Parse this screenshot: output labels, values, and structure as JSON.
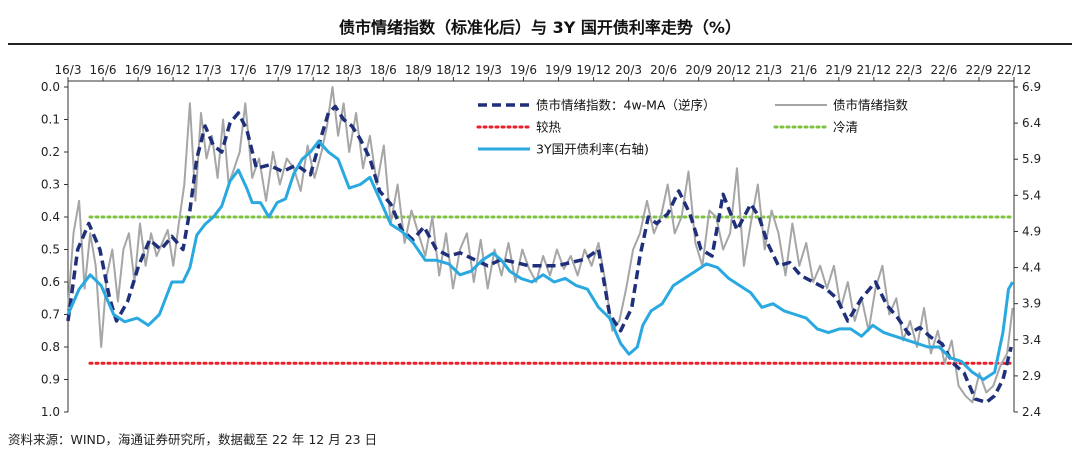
{
  "header": {
    "title": "债市情绪指数（标准化后）与 3Y 国开债利率走势（%）"
  },
  "footer": {
    "source": "资料来源：WIND，海通证券研究所，数据截至 22 年 12 月 23 日"
  },
  "chart_data": {
    "type": "line",
    "title": "债市情绪指数（标准化后）与 3Y 国开债利率走势（%）",
    "x_ticks": [
      "16/3",
      "16/6",
      "16/9",
      "16/12",
      "17/3",
      "17/6",
      "17/9",
      "17/12",
      "18/3",
      "18/6",
      "18/9",
      "18/12",
      "19/3",
      "19/6",
      "19/9",
      "19/12",
      "20/3",
      "20/6",
      "20/9",
      "20/12",
      "21/3",
      "21/6",
      "21/9",
      "21/12",
      "22/3",
      "22/6",
      "22/9",
      "22/12"
    ],
    "x_range": [
      2016.17,
      2023.0
    ],
    "left_axis": {
      "ticks": [
        "0.0",
        "0.1",
        "0.2",
        "0.3",
        "0.4",
        "0.5",
        "0.6",
        "0.7",
        "0.8",
        "0.9",
        "1.0"
      ],
      "range": [
        0.0,
        1.0
      ],
      "inverted": true
    },
    "right_axis": {
      "ticks": [
        "6.9",
        "6.4",
        "5.9",
        "5.4",
        "4.9",
        "4.4",
        "3.9",
        "3.4",
        "2.9",
        "2.4"
      ],
      "range": [
        2.4,
        6.9
      ]
    },
    "legend": [
      {
        "name": "债市情绪指数：4w-MA（逆序）",
        "series": "sentiment_ma"
      },
      {
        "name": "债市情绪指数",
        "series": "sentiment"
      },
      {
        "name": "较热",
        "series": "hot"
      },
      {
        "name": "冷清",
        "series": "cold"
      },
      {
        "name": "3Y国开债利率(右轴)",
        "series": "yield"
      }
    ],
    "series": [
      {
        "id": "sentiment_ma",
        "name": "债市情绪指数：4w-MA（逆序）",
        "axis": "left",
        "color": "#1f2f7a",
        "style": "dash",
        "x": [
          2016.17,
          2016.24,
          2016.32,
          2016.4,
          2016.47,
          2016.52,
          2016.6,
          2016.68,
          2016.76,
          2016.84,
          2016.92,
          2017.0,
          2017.05,
          2017.1,
          2017.16,
          2017.22,
          2017.28,
          2017.34,
          2017.4,
          2017.46,
          2017.53,
          2017.62,
          2017.72,
          2017.82,
          2017.92,
          2018.0,
          2018.05,
          2018.1,
          2018.16,
          2018.22,
          2018.28,
          2018.35,
          2018.42,
          2018.5,
          2018.58,
          2018.66,
          2018.74,
          2018.83,
          2018.92,
          2019.0,
          2019.1,
          2019.2,
          2019.3,
          2019.4,
          2019.5,
          2019.6,
          2019.7,
          2019.8,
          2019.9,
          2020.0,
          2020.08,
          2020.16,
          2020.24,
          2020.3,
          2020.36,
          2020.42,
          2020.5,
          2020.58,
          2020.66,
          2020.74,
          2020.82,
          2020.9,
          2021.0,
          2021.1,
          2021.16,
          2021.22,
          2021.3,
          2021.38,
          2021.46,
          2021.55,
          2021.64,
          2021.72,
          2021.8,
          2021.9,
          2022.0,
          2022.08,
          2022.16,
          2022.24,
          2022.32,
          2022.4,
          2022.48,
          2022.56,
          2022.64,
          2022.72,
          2022.8,
          2022.86,
          2022.92,
          2022.98
        ],
        "y": [
          0.72,
          0.5,
          0.42,
          0.5,
          0.65,
          0.72,
          0.66,
          0.55,
          0.47,
          0.5,
          0.46,
          0.5,
          0.38,
          0.22,
          0.12,
          0.18,
          0.2,
          0.11,
          0.08,
          0.13,
          0.25,
          0.24,
          0.26,
          0.24,
          0.27,
          0.15,
          0.08,
          0.06,
          0.1,
          0.12,
          0.16,
          0.22,
          0.32,
          0.36,
          0.44,
          0.47,
          0.43,
          0.5,
          0.52,
          0.51,
          0.53,
          0.55,
          0.53,
          0.54,
          0.55,
          0.55,
          0.55,
          0.54,
          0.53,
          0.5,
          0.7,
          0.75,
          0.68,
          0.52,
          0.4,
          0.42,
          0.39,
          0.32,
          0.39,
          0.5,
          0.52,
          0.33,
          0.44,
          0.36,
          0.4,
          0.48,
          0.55,
          0.54,
          0.58,
          0.6,
          0.62,
          0.65,
          0.72,
          0.65,
          0.6,
          0.67,
          0.71,
          0.76,
          0.74,
          0.77,
          0.79,
          0.85,
          0.88,
          0.96,
          0.97,
          0.95,
          0.9,
          0.8
        ]
      },
      {
        "id": "sentiment",
        "name": "债市情绪指数",
        "axis": "left",
        "color": "#a6a6a6",
        "style": "solid",
        "x": [
          2016.17,
          2016.21,
          2016.25,
          2016.29,
          2016.33,
          2016.37,
          2016.41,
          2016.45,
          2016.49,
          2016.53,
          2016.57,
          2016.61,
          2016.65,
          2016.69,
          2016.73,
          2016.77,
          2016.81,
          2016.85,
          2016.89,
          2016.93,
          2016.97,
          2017.01,
          2017.05,
          2017.09,
          2017.13,
          2017.17,
          2017.21,
          2017.25,
          2017.29,
          2017.33,
          2017.37,
          2017.41,
          2017.45,
          2017.5,
          2017.55,
          2017.6,
          2017.65,
          2017.7,
          2017.75,
          2017.8,
          2017.85,
          2017.9,
          2017.95,
          2018.0,
          2018.04,
          2018.08,
          2018.12,
          2018.16,
          2018.2,
          2018.25,
          2018.3,
          2018.35,
          2018.4,
          2018.45,
          2018.5,
          2018.55,
          2018.6,
          2018.65,
          2018.7,
          2018.75,
          2018.8,
          2018.85,
          2018.9,
          2018.95,
          2019.0,
          2019.05,
          2019.1,
          2019.15,
          2019.2,
          2019.25,
          2019.3,
          2019.35,
          2019.4,
          2019.45,
          2019.5,
          2019.55,
          2019.6,
          2019.65,
          2019.7,
          2019.75,
          2019.8,
          2019.85,
          2019.9,
          2019.95,
          2020.0,
          2020.05,
          2020.1,
          2020.15,
          2020.2,
          2020.25,
          2020.3,
          2020.35,
          2020.4,
          2020.45,
          2020.5,
          2020.55,
          2020.6,
          2020.65,
          2020.7,
          2020.75,
          2020.8,
          2020.85,
          2020.9,
          2020.95,
          2021.0,
          2021.05,
          2021.1,
          2021.15,
          2021.2,
          2021.25,
          2021.3,
          2021.35,
          2021.4,
          2021.45,
          2021.5,
          2021.55,
          2021.6,
          2021.65,
          2021.7,
          2021.75,
          2021.8,
          2021.85,
          2021.9,
          2021.95,
          2022.0,
          2022.05,
          2022.1,
          2022.15,
          2022.2,
          2022.25,
          2022.3,
          2022.35,
          2022.4,
          2022.45,
          2022.5,
          2022.55,
          2022.6,
          2022.65,
          2022.7,
          2022.75,
          2022.8,
          2022.85,
          2022.9,
          2022.95,
          2022.99
        ],
        "y": [
          0.68,
          0.45,
          0.35,
          0.62,
          0.45,
          0.55,
          0.8,
          0.58,
          0.5,
          0.66,
          0.5,
          0.45,
          0.6,
          0.42,
          0.55,
          0.45,
          0.52,
          0.48,
          0.44,
          0.55,
          0.42,
          0.3,
          0.05,
          0.35,
          0.08,
          0.22,
          0.15,
          0.28,
          0.1,
          0.3,
          0.25,
          0.2,
          0.05,
          0.28,
          0.22,
          0.35,
          0.2,
          0.3,
          0.22,
          0.25,
          0.32,
          0.18,
          0.28,
          0.2,
          0.12,
          0.0,
          0.15,
          0.05,
          0.2,
          0.08,
          0.25,
          0.15,
          0.3,
          0.18,
          0.42,
          0.3,
          0.48,
          0.38,
          0.45,
          0.52,
          0.4,
          0.58,
          0.45,
          0.62,
          0.5,
          0.45,
          0.6,
          0.47,
          0.62,
          0.5,
          0.58,
          0.48,
          0.6,
          0.5,
          0.56,
          0.6,
          0.52,
          0.58,
          0.5,
          0.56,
          0.52,
          0.58,
          0.5,
          0.55,
          0.48,
          0.6,
          0.75,
          0.72,
          0.62,
          0.5,
          0.45,
          0.35,
          0.45,
          0.4,
          0.3,
          0.45,
          0.4,
          0.26,
          0.48,
          0.55,
          0.38,
          0.4,
          0.5,
          0.45,
          0.25,
          0.55,
          0.42,
          0.3,
          0.5,
          0.38,
          0.45,
          0.58,
          0.42,
          0.55,
          0.48,
          0.6,
          0.55,
          0.62,
          0.55,
          0.68,
          0.6,
          0.72,
          0.65,
          0.75,
          0.62,
          0.55,
          0.7,
          0.65,
          0.78,
          0.72,
          0.8,
          0.68,
          0.82,
          0.75,
          0.85,
          0.78,
          0.92,
          0.95,
          0.97,
          0.88,
          0.94,
          0.92,
          0.86,
          0.82,
          0.68
        ]
      },
      {
        "id": "yield",
        "name": "3Y国开债利率(右轴)",
        "axis": "right",
        "color": "#29a9e0",
        "style": "solid",
        "x": [
          2016.17,
          2016.25,
          2016.33,
          2016.41,
          2016.5,
          2016.58,
          2016.67,
          2016.75,
          2016.83,
          2016.92,
          2017.0,
          2017.05,
          2017.1,
          2017.16,
          2017.22,
          2017.28,
          2017.34,
          2017.4,
          2017.46,
          2017.5,
          2017.56,
          2017.62,
          2017.68,
          2017.74,
          2017.8,
          2017.86,
          2017.92,
          2017.98,
          2018.05,
          2018.12,
          2018.2,
          2018.28,
          2018.35,
          2018.42,
          2018.5,
          2018.58,
          2018.66,
          2018.75,
          2018.83,
          2018.92,
          2019.0,
          2019.08,
          2019.16,
          2019.24,
          2019.3,
          2019.36,
          2019.44,
          2019.52,
          2019.6,
          2019.68,
          2019.76,
          2019.84,
          2019.92,
          2020.0,
          2020.08,
          2020.16,
          2020.22,
          2020.28,
          2020.32,
          2020.38,
          2020.46,
          2020.54,
          2020.62,
          2020.7,
          2020.78,
          2020.86,
          2020.94,
          2021.02,
          2021.1,
          2021.18,
          2021.26,
          2021.34,
          2021.42,
          2021.5,
          2021.58,
          2021.66,
          2021.74,
          2021.82,
          2021.9,
          2021.98,
          2022.06,
          2022.14,
          2022.22,
          2022.3,
          2022.38,
          2022.46,
          2022.54,
          2022.62,
          2022.7,
          2022.78,
          2022.86,
          2022.92,
          2022.96,
          2022.99
        ],
        "y": [
          3.75,
          4.1,
          4.3,
          4.15,
          3.75,
          3.65,
          3.7,
          3.6,
          3.75,
          4.2,
          4.2,
          4.4,
          4.85,
          5.0,
          5.1,
          5.25,
          5.6,
          5.75,
          5.5,
          5.3,
          5.3,
          5.1,
          5.3,
          5.35,
          5.7,
          5.9,
          6.0,
          6.15,
          6.0,
          5.9,
          5.5,
          5.55,
          5.65,
          5.35,
          5.0,
          4.9,
          4.75,
          4.5,
          4.5,
          4.45,
          4.3,
          4.35,
          4.5,
          4.6,
          4.5,
          4.35,
          4.25,
          4.2,
          4.3,
          4.2,
          4.25,
          4.15,
          4.1,
          3.85,
          3.7,
          3.35,
          3.2,
          3.3,
          3.6,
          3.8,
          3.9,
          4.15,
          4.25,
          4.35,
          4.45,
          4.4,
          4.25,
          4.15,
          4.05,
          3.85,
          3.9,
          3.8,
          3.75,
          3.7,
          3.55,
          3.5,
          3.55,
          3.55,
          3.45,
          3.6,
          3.5,
          3.45,
          3.4,
          3.35,
          3.3,
          3.3,
          3.15,
          3.1,
          2.95,
          2.85,
          2.95,
          3.5,
          4.1,
          4.2
        ]
      }
    ],
    "reference_lines": [
      {
        "id": "hot",
        "name": "较热",
        "value": 0.85,
        "color": "#e8202a",
        "style": "dotted"
      },
      {
        "id": "cold",
        "name": "冷清",
        "value": 0.4,
        "color": "#7fc241",
        "style": "dotted"
      }
    ]
  }
}
